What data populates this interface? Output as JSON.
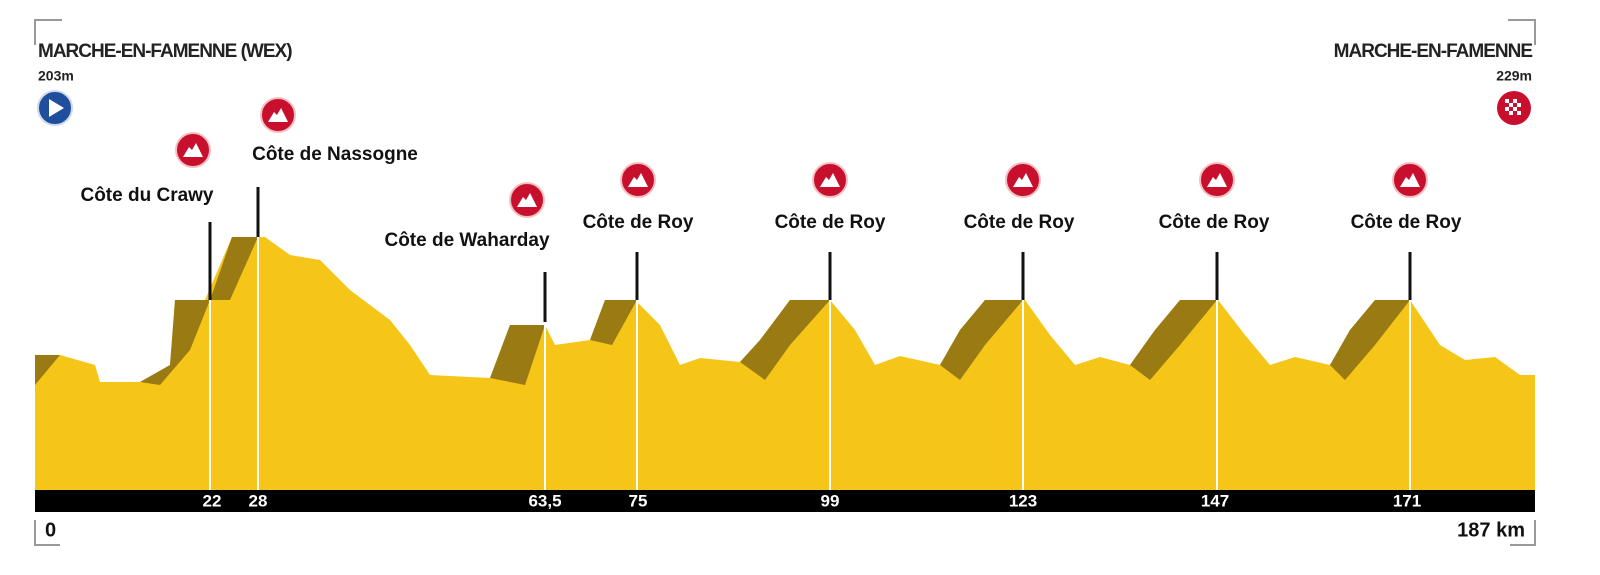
{
  "start": {
    "name": "MARCHE-EN-FAMENNE (WEX)",
    "elevation": "203m"
  },
  "finish": {
    "name": "MARCHE-EN-FAMENNE",
    "elevation": "229m"
  },
  "climbs": [
    {
      "name": "Côte du Crawy",
      "km": "22"
    },
    {
      "name": "Côte de Nassogne",
      "km": "28"
    },
    {
      "name": "Côte de Waharday",
      "km": "63,5"
    },
    {
      "name": "Côte de Roy",
      "km": "75"
    },
    {
      "name": "Côte de Roy",
      "km": "99"
    },
    {
      "name": "Côte de Roy",
      "km": "123"
    },
    {
      "name": "Côte de Roy",
      "km": "147"
    },
    {
      "name": "Côte de Roy",
      "km": "171"
    }
  ],
  "distance": {
    "start": "0",
    "end": "187 km"
  }
}
